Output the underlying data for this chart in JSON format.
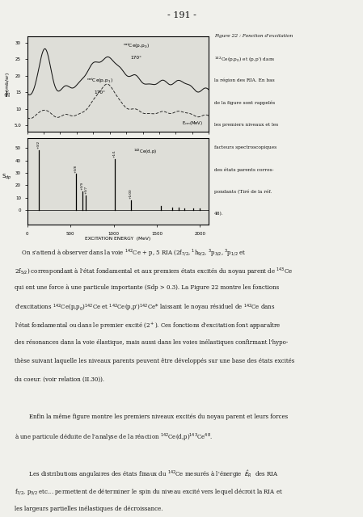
{
  "page_title": "- 191 -",
  "background_color": "#f0f0eb",
  "plot_background": "#deded8",
  "text_color": "#111111",
  "top_plot": {
    "xlim": [
      0.96,
      1.18
    ],
    "ylim": [
      3,
      32
    ],
    "yticks": [
      5,
      10,
      15,
      20,
      25,
      30
    ],
    "yticklabels": [
      "5.0",
      "10",
      "15",
      "20",
      "25",
      "30"
    ],
    "xticks": [
      0.96,
      0.98,
      1.0,
      1.02,
      1.04,
      1.06,
      1.08,
      1.1,
      1.12,
      1.14,
      1.16,
      1.18
    ],
    "ylabel": "$\\frac{d\\sigma}{d\\Omega}$(mb/sr)",
    "label1": "$^{nat}$Ce(p,p$_0$)",
    "label1b": "170°",
    "label2": "$^{nat}$Ce(p,p$_1$)",
    "label2b": "170°",
    "ecm_label": "E$_{cm}$(MeV)"
  },
  "bottom_plot": {
    "xlim": [
      0,
      2100
    ],
    "ylim": [
      -12,
      58
    ],
    "yticks": [
      0,
      10,
      20,
      30,
      40,
      50
    ],
    "yticklabels": [
      "0",
      "10",
      "20",
      "30",
      "40",
      "50"
    ],
    "xticks": [
      0,
      500,
      1000,
      1500,
      2000
    ],
    "xticklabels": [
      "0",
      "500",
      "1000",
      "1500",
      "2000"
    ],
    "xlabel": "EXCITATION ENERGY  (MeV)",
    "ylabel": "S$_{dp}$",
    "reaction_label": "$^{142}$Ce(d,p)",
    "reaction_x": 1230,
    "reaction_y": 50,
    "bar_x": [
      130,
      560,
      635,
      680,
      1010,
      1200,
      1550,
      1680,
      1750,
      1820,
      1920,
      2000
    ],
    "bar_h": [
      48,
      29,
      15,
      12,
      41,
      8,
      3,
      2,
      2,
      1.5,
      1,
      1
    ],
    "bar_labels": [
      "+3/2",
      "+3/8",
      "+3/9",
      "+3/7",
      "+1/1",
      "+1/00",
      "",
      "",
      "",
      "",
      "",
      ""
    ]
  },
  "caption": [
    "Figure 22 : Fonction d'excitation",
    "$^{142}$Ce(p,p$_0$) et (p,p') dans",
    "la région des RIA. En bas",
    "de la figure sont rappelés",
    "les premiers niveaux et les",
    "facteurs spectroscopiques",
    "des états parents corres-",
    "pondants (Tiré de la réf.",
    "48)."
  ],
  "body_lines": [
    "    On s'attend à observer dans la voie $^{142}$Ce + p, 5 RIA (2f$_{7/2}$, $^1$h$_{9/2}$, $^3$p$_{3/2}$, $^3$p$_{1/2}$ et",
    "2f$_{5/2}$) correspondant à l'état fondamental et aux premiers états excités du noyau parent de $^{143}$Ce",
    "qui ont une force à une particule importante (Sdp > 0.3). La Figure 22 montre les fonctions",
    "d'excitations $^{142}$Ce(p,p$_0$)$^{142}$Ce et $^{142}$Ce(p,p')$^{142}$Ce* laissant le noyau résiduel de $^{142}$Ce dans",
    "l'état fondamental ou dans le premier excité (2$^+$). Ces fonctions d'excitation font apparaître",
    "des résonances dans la voie élastique, mais aussi dans les voies inélastiques confirmant l'hypo-",
    "thèse suivant laquelle les niveaux parents peuvent être développés sur une base des états excités",
    "du coeur. (voir relation (II.30)).",
    "",
    "        Enfin la même figure montre les premiers niveaux excités du noyau parent et leurs forces",
    "à une particule déduite de l'analyse de la réaction $^{142}$Ce(d,p)$^{143}$Ce$^{48}$.",
    "",
    "        Les distributions angulaires des états finaux du $^{142}$Ce mesurés à l'énergie  $\\hat{E}_R$  des RIA",
    "f$_{7/2}$, p$_{3/2}$ etc... permettent de déterminer le spin du niveau excité vers lequel décroit la RIA et",
    "les largeurs partielles inélastiques de décroissance."
  ]
}
